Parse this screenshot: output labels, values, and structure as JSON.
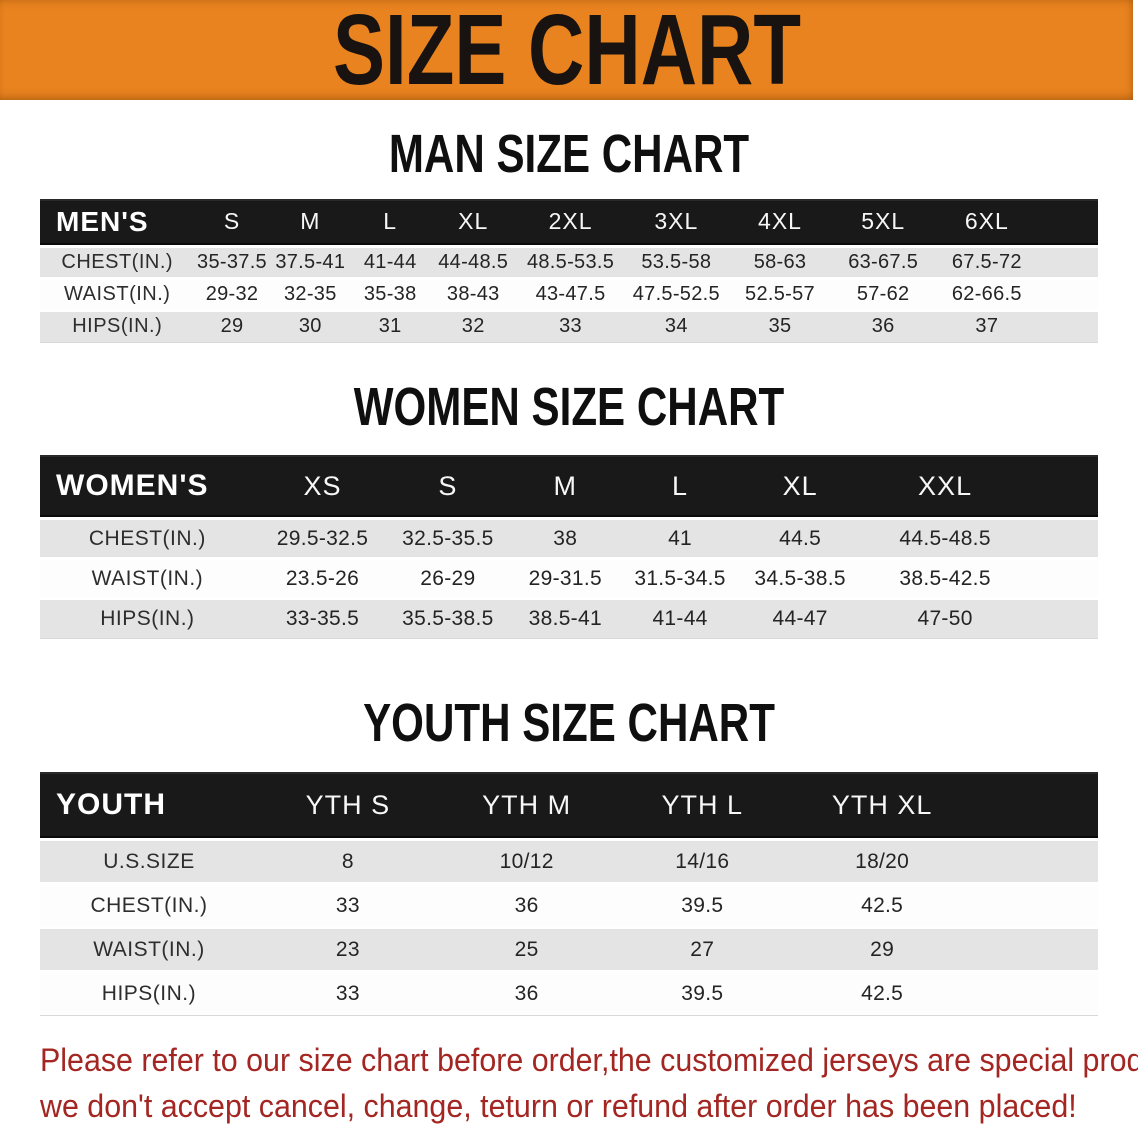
{
  "banner": {
    "title": "SIZE CHART",
    "bg_color": "#E9831F",
    "text_color": "#181310"
  },
  "sections": [
    {
      "id": "men",
      "heading": "MAN SIZE CHART",
      "table": {
        "corner_label": "MEN'S",
        "sizes": [
          "S",
          "M",
          "L",
          "XL",
          "2XL",
          "3XL",
          "4XL",
          "5XL",
          "6XL"
        ],
        "rows": [
          {
            "label": "CHEST(IN.)",
            "values": [
              "35-37.5",
              "37.5-41",
              "41-44",
              "44-48.5",
              "48.5-53.5",
              "53.5-58",
              "58-63",
              "63-67.5",
              "67.5-72"
            ]
          },
          {
            "label": "WAIST(IN.)",
            "values": [
              "29-32",
              "32-35",
              "35-38",
              "38-43",
              "43-47.5",
              "47.5-52.5",
              "52.5-57",
              "57-62",
              "62-66.5"
            ]
          },
          {
            "label": "HIPS(IN.)",
            "values": [
              "29",
              "30",
              "31",
              "32",
              "33",
              "34",
              "35",
              "36",
              "37"
            ]
          }
        ]
      }
    },
    {
      "id": "women",
      "heading": "WOMEN SIZE CHART",
      "table": {
        "corner_label": "WOMEN'S",
        "sizes": [
          "XS",
          "S",
          "M",
          "L",
          "XL",
          "XXL"
        ],
        "rows": [
          {
            "label": "CHEST(IN.)",
            "values": [
              "29.5-32.5",
              "32.5-35.5",
              "38",
              "41",
              "44.5",
              "44.5-48.5"
            ]
          },
          {
            "label": "WAIST(IN.)",
            "values": [
              "23.5-26",
              "26-29",
              "29-31.5",
              "31.5-34.5",
              "34.5-38.5",
              "38.5-42.5"
            ]
          },
          {
            "label": "HIPS(IN.)",
            "values": [
              "33-35.5",
              "35.5-38.5",
              "38.5-41",
              "41-44",
              "44-47",
              "47-50"
            ]
          }
        ]
      }
    },
    {
      "id": "youth",
      "heading": "YOUTH SIZE CHART",
      "table": {
        "corner_label": "YOUTH",
        "sizes": [
          "YTH S",
          "YTH M",
          "YTH L",
          "YTH XL"
        ],
        "rows": [
          {
            "label": "U.S.SIZE",
            "values": [
              "8",
              "10/12",
              "14/16",
              "18/20"
            ]
          },
          {
            "label": "CHEST(IN.)",
            "values": [
              "33",
              "36",
              "39.5",
              "42.5"
            ]
          },
          {
            "label": "WAIST(IN.)",
            "values": [
              "23",
              "25",
              "27",
              "29"
            ]
          },
          {
            "label": "HIPS(IN.)",
            "values": [
              "33",
              "36",
              "39.5",
              "42.5"
            ]
          }
        ]
      }
    }
  ],
  "disclaimer": {
    "lines": [
      "Please refer to our size chart before order,the customized jerseys are special products,",
      "we don't accept cancel, change, teturn or refund after order has been placed!"
    ],
    "color": "#A32622"
  },
  "table_colors": {
    "header_bar": "#191919",
    "header_text": "#f7f7f7",
    "row_shaded": "#e4e4e4",
    "row_plain": "#fdfdfd"
  }
}
